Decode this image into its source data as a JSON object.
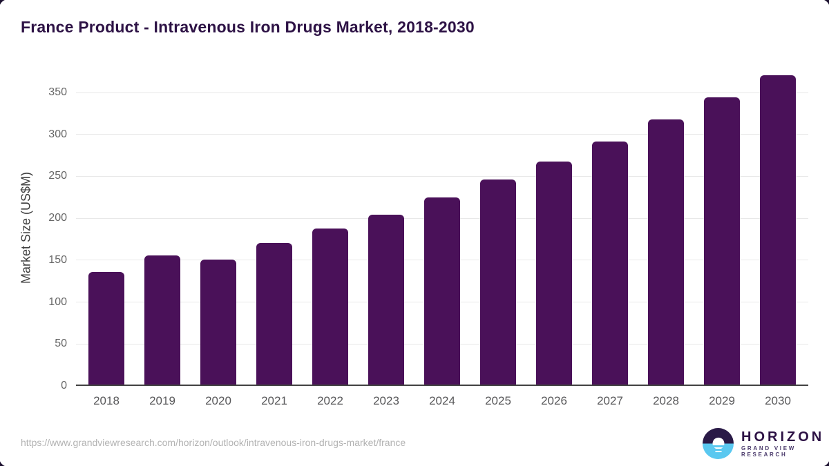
{
  "title": "France Product - Intravenous Iron Drugs Market, 2018-2030",
  "chart_data": {
    "type": "bar",
    "title": "France Product - Intravenous Iron Drugs Market, 2018-2030",
    "categories": [
      "2018",
      "2019",
      "2020",
      "2021",
      "2022",
      "2023",
      "2024",
      "2025",
      "2026",
      "2027",
      "2028",
      "2029",
      "2030"
    ],
    "values": [
      134,
      154,
      149,
      169,
      186,
      203,
      223,
      245,
      266,
      290,
      316,
      343,
      369
    ],
    "xlabel": "",
    "ylabel": "Market Size (US$M)",
    "ylim": [
      0,
      378
    ],
    "yticks": [
      0,
      50,
      100,
      150,
      200,
      250,
      300,
      350
    ],
    "grid": true,
    "legend": false,
    "bar_color": "#4a1159"
  },
  "footer": {
    "source_url": "https://www.grandviewresearch.com/horizon/outlook/intravenous-iron-drugs-market/france",
    "logo": {
      "name": "HORIZON",
      "subtitle": "GRAND VIEW RESEARCH",
      "sun_icon": "sun-over-water-icon"
    }
  },
  "colors": {
    "bar": "#4a1159",
    "title": "#2d1245",
    "gridline": "#e8e8e8",
    "axis_line": "#424242",
    "tick_label": "#666666",
    "logo_purple": "#2a1a47",
    "logo_blue": "#5ac8f0"
  }
}
